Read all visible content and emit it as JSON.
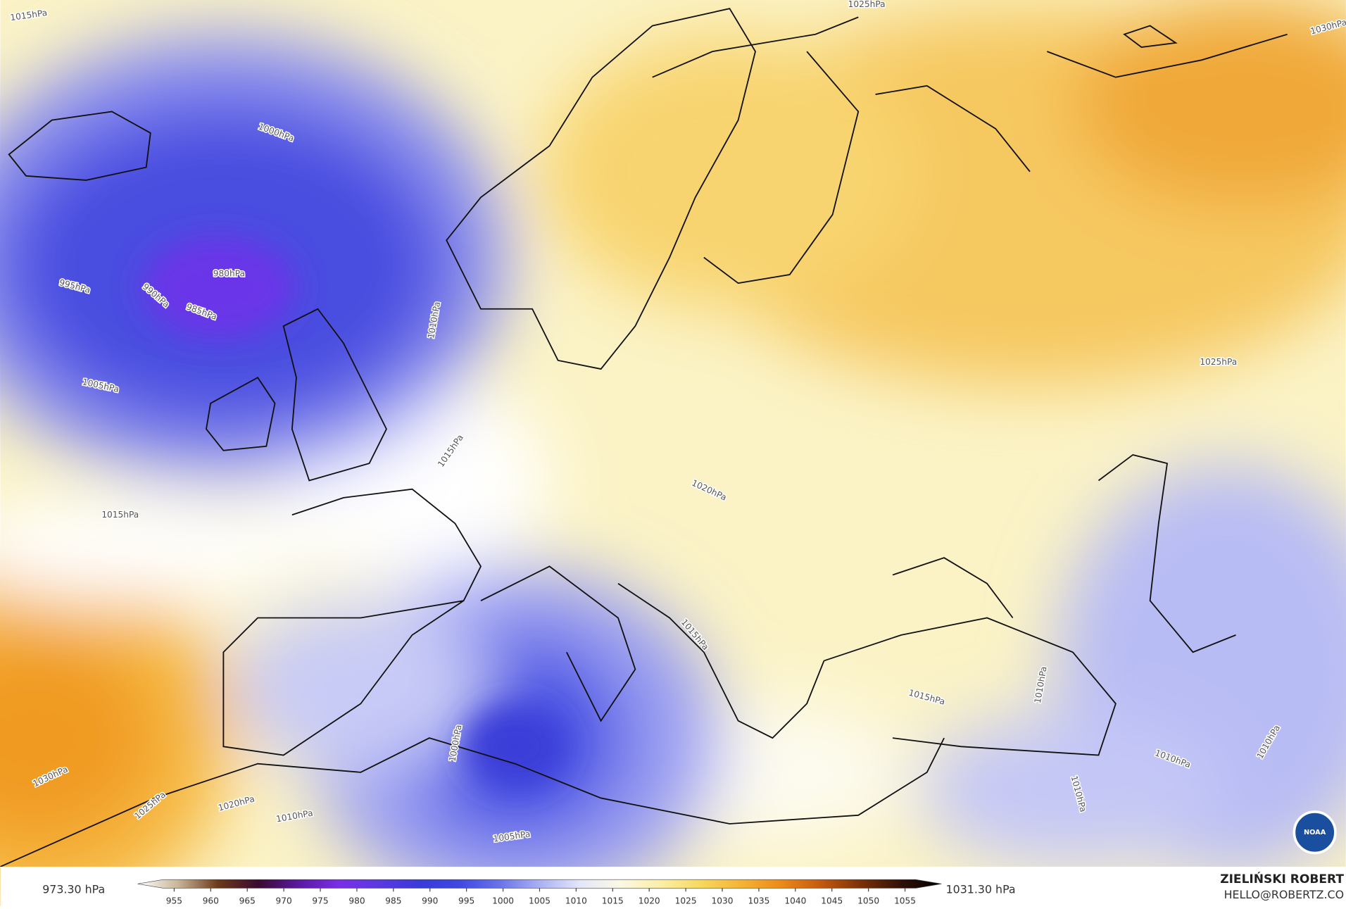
{
  "map": {
    "isobar_labels": [
      "1015hPa",
      "1000hPa",
      "980hPa",
      "985hPa",
      "990hPa",
      "995hPa",
      "1005hPa",
      "1010hPa",
      "1015hPa",
      "1015hPa",
      "1020hPa",
      "1015hPa",
      "1030hPa",
      "1025hPa",
      "1020hPa",
      "1010hPa",
      "1005hPa",
      "1000hPa",
      "1015hPa",
      "1010hPa",
      "1010hPa",
      "1010hPa",
      "1010hPa",
      "1025hPa",
      "1025hPa",
      "1030hPa"
    ],
    "logo": "NOAA"
  },
  "colorbar": {
    "min_label": "973.30 hPa",
    "max_label": "1031.30 hPa",
    "range": [
      950,
      1060
    ],
    "ticks": [
      955,
      960,
      965,
      970,
      975,
      980,
      985,
      990,
      995,
      1000,
      1005,
      1010,
      1015,
      1020,
      1025,
      1030,
      1035,
      1040,
      1045,
      1050,
      1055
    ],
    "colors": [
      "#ffffff",
      "#c9b59a",
      "#6b3a1a",
      "#3a0a30",
      "#5a1aa0",
      "#7a2ee6",
      "#5a3ae0",
      "#3a3ad8",
      "#3f48e0",
      "#6a72ea",
      "#aab0f2",
      "#e4e6fa",
      "#fbf8e4",
      "#fbefa8",
      "#f8d860",
      "#f4b436",
      "#ec8a1a",
      "#c45a10",
      "#7a3008",
      "#301008",
      "#000000"
    ]
  },
  "credit": {
    "author": "ZIELIŃSKI ROBERT",
    "contact": "HELLO@ROBERTZ.CO"
  }
}
